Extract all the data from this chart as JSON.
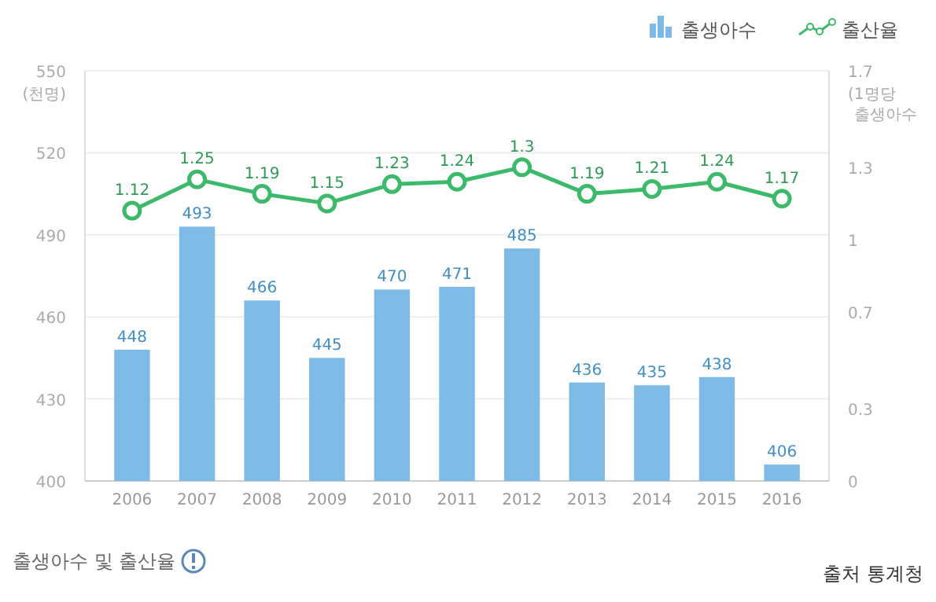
{
  "chart_data": {
    "type": "bar",
    "title": "출생아수 및 출산율",
    "ylabel": "(천명)",
    "y2label": "(1명당 출생아수",
    "categories": [
      "2006",
      "2007",
      "2008",
      "2009",
      "2010",
      "2011",
      "2012",
      "2013",
      "2014",
      "2015",
      "2016"
    ],
    "series": [
      {
        "name": "출생아수",
        "color": "#7dbbe6",
        "values": [
          448,
          493,
          466,
          445,
          470,
          471,
          485,
          436,
          435,
          438,
          406
        ]
      },
      {
        "name": "출산율",
        "type": "line",
        "axis": "y2",
        "color": "#3cb96a",
        "values": [
          1.12,
          1.25,
          1.19,
          1.15,
          1.23,
          1.24,
          1.3,
          1.19,
          1.21,
          1.24,
          1.17
        ]
      }
    ],
    "ylim": [
      400,
      550
    ],
    "yticks": [
      400,
      430,
      460,
      490,
      520,
      550
    ],
    "y2lim": [
      0,
      1.7
    ],
    "y2ticks": [
      0,
      0.3,
      0.7,
      1,
      1.3,
      1.7
    ],
    "grid": "y",
    "legend": "top right",
    "marker": "circle",
    "data_labels": true,
    "annotations": [
      "출처 통계청"
    ]
  }
}
